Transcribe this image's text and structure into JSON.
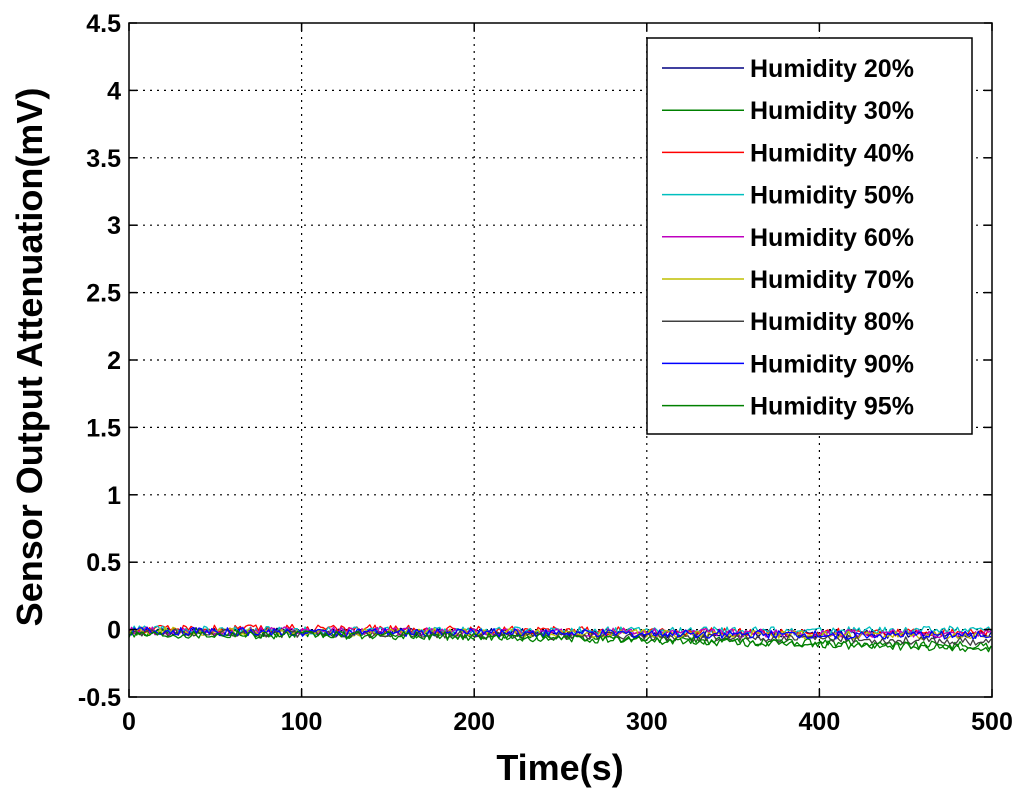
{
  "chart_data": {
    "type": "line",
    "title": "",
    "xlabel": "Time(s)",
    "ylabel": "Sensor Output Attenuation(mV)",
    "xlim": [
      0,
      500
    ],
    "ylim": [
      -0.5,
      4.5
    ],
    "xticks": [
      0,
      100,
      200,
      300,
      400,
      500
    ],
    "yticks": [
      -0.5,
      0,
      0.5,
      1,
      1.5,
      2,
      2.5,
      3,
      3.5,
      4,
      4.5
    ],
    "grid": true,
    "legend_position": "top-right",
    "series": [
      {
        "name": "Humidity 20%",
        "color": "#000080",
        "x": [
          0,
          100,
          200,
          300,
          400,
          500
        ],
        "y": [
          -0.01,
          -0.02,
          -0.02,
          -0.03,
          -0.03,
          -0.04
        ]
      },
      {
        "name": "Humidity 30%",
        "color": "#008000",
        "x": [
          0,
          100,
          200,
          300,
          400,
          500
        ],
        "y": [
          -0.02,
          -0.03,
          -0.05,
          -0.07,
          -0.1,
          -0.12
        ]
      },
      {
        "name": "Humidity 40%",
        "color": "#ff0000",
        "x": [
          0,
          100,
          200,
          300,
          400,
          500
        ],
        "y": [
          0.0,
          0.01,
          0.0,
          -0.01,
          -0.02,
          -0.02
        ]
      },
      {
        "name": "Humidity 50%",
        "color": "#00bfbf",
        "x": [
          0,
          100,
          200,
          300,
          400,
          500
        ],
        "y": [
          0.0,
          -0.01,
          -0.01,
          -0.01,
          -0.01,
          0.0
        ]
      },
      {
        "name": "Humidity 60%",
        "color": "#bf00bf",
        "x": [
          0,
          100,
          200,
          300,
          400,
          500
        ],
        "y": [
          -0.01,
          -0.01,
          -0.02,
          -0.02,
          -0.03,
          -0.03
        ]
      },
      {
        "name": "Humidity 70%",
        "color": "#bfbf00",
        "x": [
          0,
          100,
          200,
          300,
          400,
          500
        ],
        "y": [
          -0.01,
          -0.02,
          -0.02,
          -0.03,
          -0.04,
          -0.05
        ]
      },
      {
        "name": "Humidity 80%",
        "color": "#404040",
        "x": [
          0,
          100,
          200,
          300,
          400,
          500
        ],
        "y": [
          -0.02,
          -0.03,
          -0.04,
          -0.05,
          -0.07,
          -0.09
        ]
      },
      {
        "name": "Humidity 90%",
        "color": "#0000ff",
        "x": [
          0,
          100,
          200,
          300,
          400,
          500
        ],
        "y": [
          -0.01,
          -0.02,
          -0.02,
          -0.03,
          -0.04,
          -0.04
        ]
      },
      {
        "name": "Humidity 95%",
        "color": "#008000",
        "x": [
          0,
          100,
          200,
          300,
          400,
          500
        ],
        "y": [
          -0.03,
          -0.04,
          -0.05,
          -0.08,
          -0.11,
          -0.14
        ]
      }
    ]
  }
}
